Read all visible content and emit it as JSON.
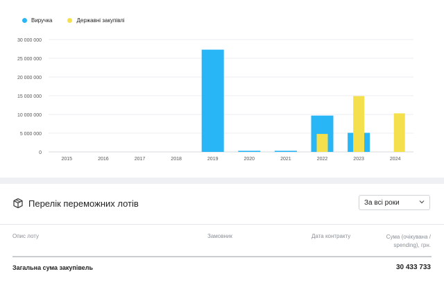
{
  "chart_data": {
    "type": "bar",
    "categories": [
      "2015",
      "2016",
      "2017",
      "2018",
      "2019",
      "2020",
      "2021",
      "2022",
      "2023",
      "2024"
    ],
    "series": [
      {
        "name": "Виручка",
        "color": "#29b6f6",
        "values": [
          0,
          0,
          0,
          0,
          27300000,
          300000,
          300000,
          9700000,
          5100000,
          0
        ]
      },
      {
        "name": "Державні закупівлі",
        "color": "#f4e04d",
        "values": [
          0,
          0,
          0,
          0,
          0,
          0,
          0,
          4800000,
          14900000,
          10300000
        ]
      }
    ],
    "ylim": [
      0,
      30000000
    ],
    "yticks": [
      {
        "value": 0,
        "label": "0"
      },
      {
        "value": 5000000,
        "label": "5 000 000"
      },
      {
        "value": 10000000,
        "label": "10 000 000"
      },
      {
        "value": 15000000,
        "label": "15 000 000"
      },
      {
        "value": 20000000,
        "label": "20 000 000"
      },
      {
        "value": 25000000,
        "label": "25 000 000"
      },
      {
        "value": 30000000,
        "label": "30 000 000"
      }
    ],
    "grid": true,
    "legend_position": "top-left"
  },
  "lots": {
    "icon": "package-icon",
    "title": "Перелік переможних лотів",
    "period_select": "За всі роки",
    "columns": {
      "description": "Опис лоту",
      "customer": "Замовник",
      "contract_date": "Дата контракту",
      "sum_line1": "Сума (очікувана /",
      "sum_line2": "spending), грн."
    },
    "total_label": "Загальна сума закупівель",
    "total_value": "30 433 733"
  }
}
